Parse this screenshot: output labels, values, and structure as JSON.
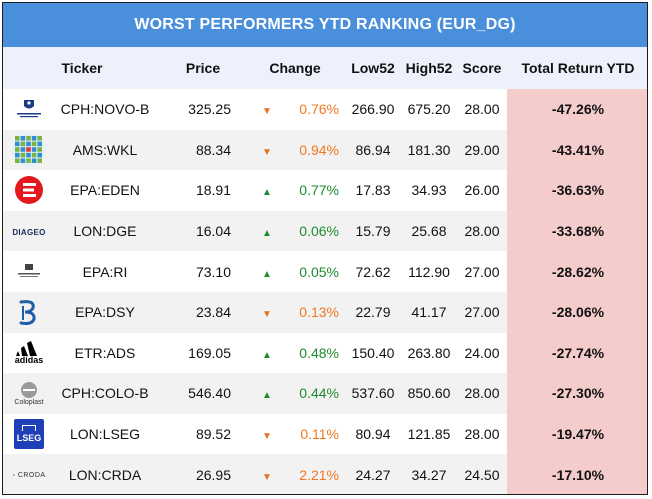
{
  "title": "WORST PERFORMERS YTD RANKING (EUR_DG)",
  "headers": {
    "ticker": "Ticker",
    "price": "Price",
    "change": "Change",
    "low52": "Low52",
    "high52": "High52",
    "score": "Score",
    "total": "Total Return YTD"
  },
  "colors": {
    "header_bar": "#4a8fdc",
    "total_highlight": "#f4cccc",
    "up": "#1f8a2e",
    "down": "#f07820"
  },
  "rows": [
    {
      "logo": "novo-nordisk-logo",
      "ticker": "CPH:NOVO-B",
      "price": "325.25",
      "direction": "down",
      "change": "0.76%",
      "low52": "266.90",
      "high52": "675.20",
      "score": "28.00",
      "total": "-47.26%"
    },
    {
      "logo": "wolters-kluwer-logo",
      "ticker": "AMS:WKL",
      "price": "88.34",
      "direction": "down",
      "change": "0.94%",
      "low52": "86.94",
      "high52": "181.30",
      "score": "29.00",
      "total": "-43.41%"
    },
    {
      "logo": "edenred-logo",
      "ticker": "EPA:EDEN",
      "price": "18.91",
      "direction": "up",
      "change": "0.77%",
      "low52": "17.83",
      "high52": "34.93",
      "score": "26.00",
      "total": "-36.63%"
    },
    {
      "logo": "diageo-logo",
      "logo_text": "DIAGEO",
      "ticker": "LON:DGE",
      "price": "16.04",
      "direction": "up",
      "change": "0.06%",
      "low52": "15.79",
      "high52": "25.68",
      "score": "28.00",
      "total": "-33.68%"
    },
    {
      "logo": "pernod-ricard-logo",
      "ticker": "EPA:RI",
      "price": "73.10",
      "direction": "up",
      "change": "0.05%",
      "low52": "72.62",
      "high52": "112.90",
      "score": "27.00",
      "total": "-28.62%"
    },
    {
      "logo": "dassault-systemes-logo",
      "ticker": "EPA:DSY",
      "price": "23.84",
      "direction": "down",
      "change": "0.13%",
      "low52": "22.79",
      "high52": "41.17",
      "score": "27.00",
      "total": "-28.06%"
    },
    {
      "logo": "adidas-logo",
      "logo_text": "adidas",
      "ticker": "ETR:ADS",
      "price": "169.05",
      "direction": "up",
      "change": "0.48%",
      "low52": "150.40",
      "high52": "263.80",
      "score": "24.00",
      "total": "-27.74%"
    },
    {
      "logo": "coloplast-logo",
      "logo_text": "Coloplast",
      "ticker": "CPH:COLO-B",
      "price": "546.40",
      "direction": "up",
      "change": "0.44%",
      "low52": "537.60",
      "high52": "850.60",
      "score": "28.00",
      "total": "-27.30%"
    },
    {
      "logo": "lseg-logo",
      "logo_text": "LSEG",
      "ticker": "LON:LSEG",
      "price": "89.52",
      "direction": "down",
      "change": "0.11%",
      "low52": "80.94",
      "high52": "121.85",
      "score": "28.00",
      "total": "-19.47%"
    },
    {
      "logo": "croda-logo",
      "logo_text": "CRODA",
      "ticker": "LON:CRDA",
      "price": "26.95",
      "direction": "down",
      "change": "2.21%",
      "low52": "24.27",
      "high52": "34.27",
      "score": "24.50",
      "total": "-17.10%"
    }
  ]
}
